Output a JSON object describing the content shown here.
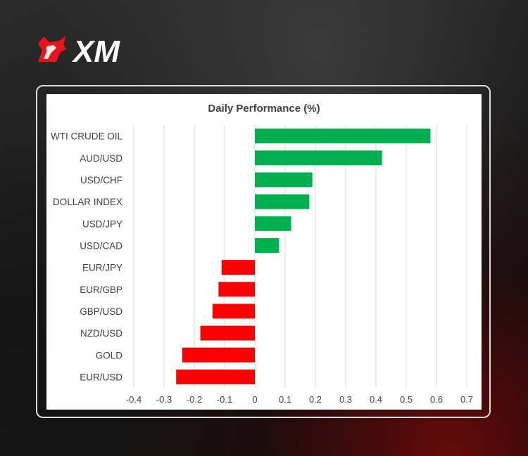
{
  "brand": {
    "logo_text": "XM",
    "colors": {
      "logo_red": "#e8141c",
      "logo_white": "#ffffff"
    }
  },
  "chart_data": {
    "type": "bar",
    "orientation": "horizontal",
    "title": "Daily Performance (%)",
    "xlabel": "",
    "ylabel": "",
    "categories": [
      "WTI CRUDE OIL",
      "AUD/USD",
      "USD/CHF",
      "DOLLAR INDEX",
      "USD/JPY",
      "USD/CAD",
      "EUR/JPY",
      "EUR/GBP",
      "GBP/USD",
      "NZD/USD",
      "GOLD",
      "EUR/USD"
    ],
    "values": [
      0.58,
      0.42,
      0.19,
      0.18,
      0.12,
      0.08,
      -0.11,
      -0.12,
      -0.14,
      -0.18,
      -0.24,
      -0.26
    ],
    "xlim": [
      -0.4,
      0.7
    ],
    "xticks": [
      "-0.4",
      "-0.3",
      "-0.2",
      "-0.1",
      "0",
      "0.1",
      "0.2",
      "0.3",
      "0.4",
      "0.5",
      "0.6",
      "0.7"
    ],
    "grid": "vertical",
    "legend": "none",
    "colors": {
      "positive": "#00b050",
      "negative": "#ff0000",
      "grid": "#d9d9d9",
      "text": "#404040"
    }
  }
}
